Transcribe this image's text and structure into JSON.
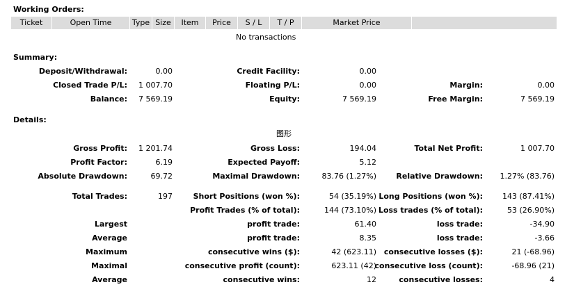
{
  "working_orders": {
    "title": "Working Orders:",
    "columns": [
      "Ticket",
      "Open Time",
      "Type",
      "Size",
      "Item",
      "Price",
      "S / L",
      "T / P",
      "Market Price",
      ""
    ],
    "empty_message": "No transactions"
  },
  "summary": {
    "title": "Summary:",
    "deposit_withdrawal": {
      "label": "Deposit/Withdrawal:",
      "value": "0.00"
    },
    "credit_facility": {
      "label": "Credit Facility:",
      "value": "0.00"
    },
    "closed_trade_pl": {
      "label": "Closed Trade P/L:",
      "value": "1 007.70"
    },
    "floating_pl": {
      "label": "Floating P/L:",
      "value": "0.00"
    },
    "margin": {
      "label": "Margin:",
      "value": "0.00"
    },
    "balance": {
      "label": "Balance:",
      "value": "7 569.19"
    },
    "equity": {
      "label": "Equity:",
      "value": "7 569.19"
    },
    "free_margin": {
      "label": "Free Margin:",
      "value": "7 569.19"
    }
  },
  "details": {
    "title": "Details:",
    "chart_caption": "图形",
    "gross_profit": {
      "label": "Gross Profit:",
      "value": "1 201.74"
    },
    "gross_loss": {
      "label": "Gross Loss:",
      "value": "194.04"
    },
    "total_net_profit": {
      "label": "Total Net Profit:",
      "value": "1 007.70"
    },
    "profit_factor": {
      "label": "Profit Factor:",
      "value": "6.19"
    },
    "expected_payoff": {
      "label": "Expected Payoff:",
      "value": "5.12"
    },
    "absolute_drawdown": {
      "label": "Absolute Drawdown:",
      "value": "69.72"
    },
    "maximal_drawdown": {
      "label": "Maximal Drawdown:",
      "value": "83.76 (1.27%)"
    },
    "relative_drawdown": {
      "label": "Relative Drawdown:",
      "value": "1.27% (83.76)"
    },
    "total_trades": {
      "label": "Total Trades:",
      "value": "197"
    },
    "short_positions": {
      "label": "Short Positions (won %):",
      "value": "54 (35.19%)"
    },
    "long_positions": {
      "label": "Long Positions (won %):",
      "value": "143 (87.41%)"
    },
    "profit_trades": {
      "label": "Profit Trades (% of total):",
      "value": "144 (73.10%)"
    },
    "loss_trades": {
      "label": "Loss trades (% of total):",
      "value": "53 (26.90%)"
    },
    "largest": {
      "label": "Largest",
      "profit_label": "profit trade:",
      "profit_value": "61.40",
      "loss_label": "loss trade:",
      "loss_value": "-34.90"
    },
    "average": {
      "label": "Average",
      "profit_label": "profit trade:",
      "profit_value": "8.35",
      "loss_label": "loss trade:",
      "loss_value": "-3.66"
    },
    "maximum": {
      "label": "Maximum",
      "profit_label": "consecutive wins ($):",
      "profit_value": "42 (623.11)",
      "loss_label": "consecutive losses ($):",
      "loss_value": "21 (-68.96)"
    },
    "maximal": {
      "label": "Maximal",
      "profit_label": "consecutive profit (count):",
      "profit_value": "623.11 (42)",
      "loss_label": "consecutive loss (count):",
      "loss_value": "-68.96 (21)"
    },
    "average_consecutive": {
      "label": "Average",
      "profit_label": "consecutive wins:",
      "profit_value": "12",
      "loss_label": "consecutive losses:",
      "loss_value": "4"
    }
  }
}
